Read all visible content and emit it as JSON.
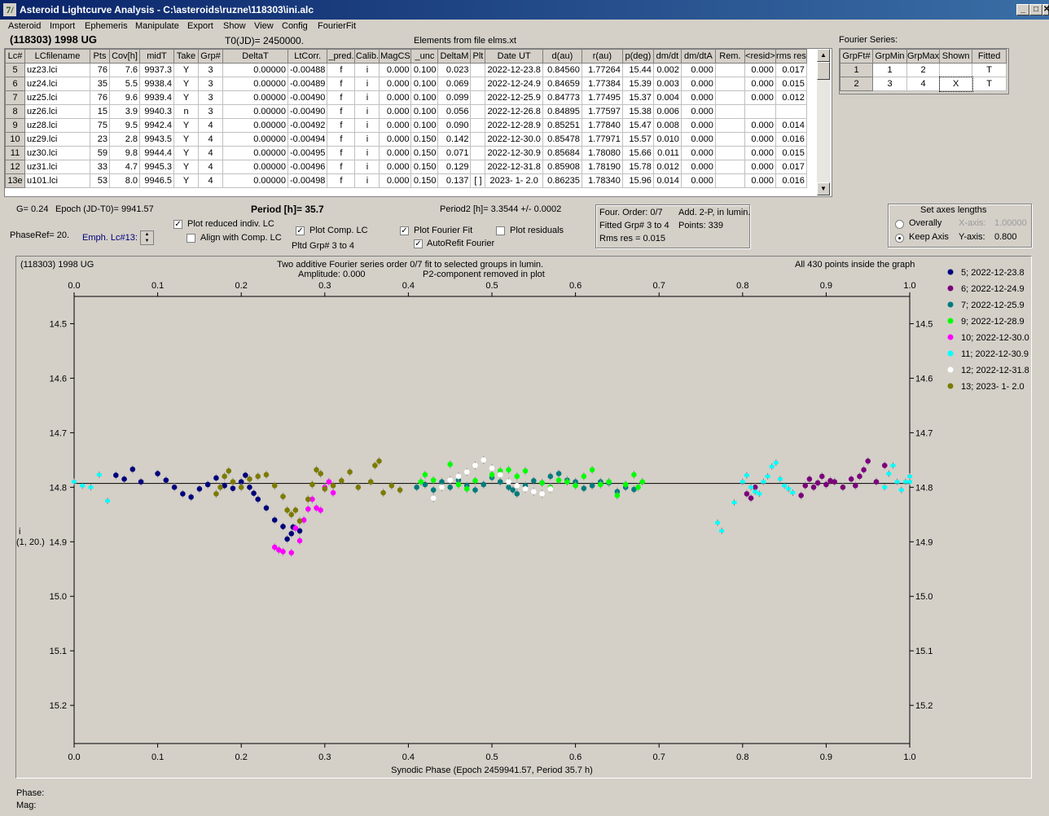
{
  "window": {
    "title": "Asteroid Lightcurve Analysis - C:\\asteroids\\ruzne\\118303\\ini.alc",
    "icon_glyph": "7/",
    "btn_min": "_",
    "btn_max": "□",
    "btn_close": "✕"
  },
  "menu": [
    "Asteroid",
    "Import",
    "Ephemeris",
    "Manipulate",
    "Export",
    "Show",
    "View",
    "Config",
    "FourierFit"
  ],
  "header": {
    "asteroid": "(118303) 1998 UG",
    "t0": "T0(JD)= 2450000.",
    "elements": "Elements from file elms.xt",
    "fourier_series": "Fourier Series:"
  },
  "lc_table": {
    "columns": [
      "Lc#",
      "LCfilename",
      "Pts",
      "Cov[h]",
      "midT",
      "Take",
      "Grp#",
      "DeltaT",
      "LtCorr.",
      "_pred.",
      "Calib.",
      "MagCS",
      "_unc",
      "DeltaM",
      "Plt",
      "Date UT",
      "d(au)",
      "r(au)",
      "p(deg)",
      "dm/dt",
      "dm/dtA",
      "Rem.",
      "<resid>",
      "rms res"
    ],
    "rows": [
      [
        "5",
        "uz23.lci",
        "76",
        "7.6",
        "9937.3",
        "Y",
        "3",
        "0.00000",
        "-0.00488",
        "f",
        "i",
        "0.000",
        "0.100",
        "0.023",
        "",
        "2022-12-23.8",
        "0.84560",
        "1.77264",
        "15.44",
        "0.002",
        "0.000",
        "",
        "0.000",
        "0.017"
      ],
      [
        "6",
        "uz24.lci",
        "35",
        "5.5",
        "9938.4",
        "Y",
        "3",
        "0.00000",
        "-0.00489",
        "f",
        "i",
        "0.000",
        "0.100",
        "0.069",
        "",
        "2022-12-24.9",
        "0.84659",
        "1.77384",
        "15.39",
        "0.003",
        "0.000",
        "",
        "0.000",
        "0.015"
      ],
      [
        "7",
        "uz25.lci",
        "76",
        "9.6",
        "9939.4",
        "Y",
        "3",
        "0.00000",
        "-0.00490",
        "f",
        "i",
        "0.000",
        "0.100",
        "0.099",
        "",
        "2022-12-25.9",
        "0.84773",
        "1.77495",
        "15.37",
        "0.004",
        "0.000",
        "",
        "0.000",
        "0.012"
      ],
      [
        "8",
        "uz26.lci",
        "15",
        "3.9",
        "9940.3",
        "n",
        "3",
        "0.00000",
        "-0.00490",
        "f",
        "i",
        "0.000",
        "0.100",
        "0.056",
        "",
        "2022-12-26.8",
        "0.84895",
        "1.77597",
        "15.38",
        "0.006",
        "0.000",
        "",
        "",
        ""
      ],
      [
        "9",
        "uz28.lci",
        "75",
        "9.5",
        "9942.4",
        "Y",
        "4",
        "0.00000",
        "-0.00492",
        "f",
        "i",
        "0.000",
        "0.100",
        "0.090",
        "",
        "2022-12-28.9",
        "0.85251",
        "1.77840",
        "15.47",
        "0.008",
        "0.000",
        "",
        "0.000",
        "0.014"
      ],
      [
        "10",
        "uz29.lci",
        "23",
        "2.8",
        "9943.5",
        "Y",
        "4",
        "0.00000",
        "-0.00494",
        "f",
        "i",
        "0.000",
        "0.150",
        "0.142",
        "",
        "2022-12-30.0",
        "0.85478",
        "1.77971",
        "15.57",
        "0.010",
        "0.000",
        "",
        "0.000",
        "0.016"
      ],
      [
        "11",
        "uz30.lci",
        "59",
        "9.8",
        "9944.4",
        "Y",
        "4",
        "0.00000",
        "-0.00495",
        "f",
        "i",
        "0.000",
        "0.150",
        "0.071",
        "",
        "2022-12-30.9",
        "0.85684",
        "1.78080",
        "15.66",
        "0.011",
        "0.000",
        "",
        "0.000",
        "0.015"
      ],
      [
        "12",
        "uz31.lci",
        "33",
        "4.7",
        "9945.3",
        "Y",
        "4",
        "0.00000",
        "-0.00496",
        "f",
        "i",
        "0.000",
        "0.150",
        "0.129",
        "",
        "2022-12-31.8",
        "0.85908",
        "1.78190",
        "15.78",
        "0.012",
        "0.000",
        "",
        "0.000",
        "0.017"
      ],
      [
        "13e",
        "u101.lci",
        "53",
        "8.0",
        "9946.5",
        "Y",
        "4",
        "0.00000",
        "-0.00498",
        "f",
        "i",
        "0.000",
        "0.150",
        "0.137",
        "[ ]",
        "2023- 1- 2.0",
        "0.86235",
        "1.78340",
        "15.96",
        "0.014",
        "0.000",
        "",
        "0.000",
        "0.016"
      ]
    ],
    "scroll_up": "▲",
    "scroll_down": "▼"
  },
  "fourier_table": {
    "columns": [
      "GrpFt#",
      "GrpMin",
      "GrpMax",
      "Shown",
      "Fitted"
    ],
    "rows": [
      [
        "1",
        "1",
        "2",
        "",
        "T"
      ],
      [
        "2",
        "3",
        "4",
        "X",
        "T"
      ]
    ]
  },
  "controls": {
    "g": "G= 0.24",
    "epoch": "Epoch (JD-T0)= 9941.57",
    "period": "Period [h]= 35.7",
    "period2": "Period2 [h]= 3.3544 +/- 0.0002",
    "phaseref": "PhaseRef= 20.",
    "emph": "Emph. Lc#13:",
    "plot_reduced": "Plot reduced indiv. LC",
    "align_comp": "Align with Comp. LC",
    "plot_comp": "Plot Comp. LC",
    "pltd_grp": "Pltd Grp#  3   to   4",
    "plot_fourier": "Plot Fourier Fit",
    "autorefit": "AutoRefit Fourier",
    "plot_residuals": "Plot residuals",
    "check_mark": "✓"
  },
  "fourier_info": {
    "order": "Four. Order:  0/7",
    "add": "Add. 2-P, in lumin.",
    "fitted": "Fitted Grp# 3 to 4",
    "points": "Points: 339",
    "rms": "Rms res     = 0.015"
  },
  "axes_box": {
    "title": "Set axes lengths",
    "overally": "Overally",
    "keep": "Keep Axis",
    "xaxis_label": "X-axis:",
    "xaxis_value": "1.00000",
    "yaxis_label": "Y-axis:",
    "yaxis_value": "0.800"
  },
  "plot_text": {
    "name": "(118303) 1998 UG",
    "desc1": "Two additive Fourier series order 0/7 fit to selected groups in lumin.",
    "desc2": "Amplitude: 0.000",
    "desc3": "P2-component removed in plot",
    "inside": "All 430 points inside the graph",
    "ylabel1": "i",
    "ylabel2": "(1, 20.)"
  },
  "chart_data": {
    "type": "scatter",
    "xlabel": "Synodic Phase (Epoch 2459941.57, Period 35.7 h)",
    "ylabel": "i (1, 20.)",
    "xlim": [
      0,
      1
    ],
    "ylim": [
      15.27,
      14.45
    ],
    "y_inverted": true,
    "xticks": [
      "0.0",
      "0.1",
      "0.2",
      "0.3",
      "0.4",
      "0.5",
      "0.6",
      "0.7",
      "0.8",
      "0.9",
      "1.0"
    ],
    "yticks": [
      "14.5",
      "14.6",
      "14.7",
      "14.8",
      "14.9",
      "15.0",
      "15.1",
      "15.2"
    ],
    "fit_line_y": 14.793,
    "series": [
      {
        "name": "5; 2022-12-23.8",
        "color": "#00007b",
        "marker": "dot",
        "points": [
          [
            0.05,
            14.778
          ],
          [
            0.06,
            14.785
          ],
          [
            0.07,
            14.767
          ],
          [
            0.08,
            14.79
          ],
          [
            0.1,
            14.775
          ],
          [
            0.11,
            14.787
          ],
          [
            0.12,
            14.8
          ],
          [
            0.13,
            14.812
          ],
          [
            0.14,
            14.818
          ],
          [
            0.15,
            14.803
          ],
          [
            0.16,
            14.795
          ],
          [
            0.17,
            14.783
          ],
          [
            0.18,
            14.797
          ],
          [
            0.19,
            14.802
          ],
          [
            0.2,
            14.79
          ],
          [
            0.205,
            14.778
          ],
          [
            0.21,
            14.8
          ],
          [
            0.215,
            14.811
          ],
          [
            0.22,
            14.822
          ],
          [
            0.23,
            14.838
          ],
          [
            0.24,
            14.86
          ],
          [
            0.25,
            14.872
          ],
          [
            0.26,
            14.885
          ],
          [
            0.27,
            14.88
          ],
          [
            0.255,
            14.895
          ],
          [
            0.262,
            14.873
          ]
        ]
      },
      {
        "name": "6; 2022-12-24.9",
        "color": "#7b007b",
        "marker": "dot",
        "points": [
          [
            0.805,
            14.812
          ],
          [
            0.81,
            14.82
          ],
          [
            0.815,
            14.8
          ],
          [
            0.87,
            14.815
          ],
          [
            0.875,
            14.797
          ],
          [
            0.88,
            14.785
          ],
          [
            0.885,
            14.8
          ],
          [
            0.89,
            14.792
          ],
          [
            0.895,
            14.78
          ],
          [
            0.9,
            14.795
          ],
          [
            0.905,
            14.788
          ],
          [
            0.91,
            14.79
          ],
          [
            0.92,
            14.8
          ],
          [
            0.93,
            14.785
          ],
          [
            0.935,
            14.797
          ],
          [
            0.94,
            14.78
          ],
          [
            0.945,
            14.768
          ],
          [
            0.95,
            14.752
          ],
          [
            0.96,
            14.79
          ],
          [
            0.97,
            14.76
          ]
        ]
      },
      {
        "name": "7; 2022-12-25.9",
        "color": "#007b7b",
        "marker": "dot",
        "points": [
          [
            0.41,
            14.8
          ],
          [
            0.42,
            14.795
          ],
          [
            0.43,
            14.805
          ],
          [
            0.44,
            14.79
          ],
          [
            0.45,
            14.8
          ],
          [
            0.46,
            14.787
          ],
          [
            0.47,
            14.797
          ],
          [
            0.48,
            14.805
          ],
          [
            0.49,
            14.795
          ],
          [
            0.5,
            14.782
          ],
          [
            0.51,
            14.79
          ],
          [
            0.52,
            14.8
          ],
          [
            0.525,
            14.805
          ],
          [
            0.53,
            14.812
          ],
          [
            0.54,
            14.797
          ],
          [
            0.55,
            14.788
          ],
          [
            0.56,
            14.792
          ],
          [
            0.57,
            14.78
          ],
          [
            0.58,
            14.775
          ],
          [
            0.59,
            14.787
          ],
          [
            0.6,
            14.79
          ],
          [
            0.61,
            14.802
          ],
          [
            0.62,
            14.797
          ],
          [
            0.63,
            14.79
          ],
          [
            0.64,
            14.792
          ],
          [
            0.65,
            14.808
          ],
          [
            0.66,
            14.8
          ],
          [
            0.67,
            14.804
          ]
        ]
      },
      {
        "name": "9; 2022-12-28.9",
        "color": "#00ff00",
        "marker": "dot",
        "points": [
          [
            0.415,
            14.79
          ],
          [
            0.42,
            14.777
          ],
          [
            0.43,
            14.787
          ],
          [
            0.44,
            14.8
          ],
          [
            0.45,
            14.758
          ],
          [
            0.46,
            14.795
          ],
          [
            0.47,
            14.803
          ],
          [
            0.48,
            14.788
          ],
          [
            0.5,
            14.777
          ],
          [
            0.51,
            14.77
          ],
          [
            0.52,
            14.768
          ],
          [
            0.53,
            14.78
          ],
          [
            0.54,
            14.77
          ],
          [
            0.56,
            14.792
          ],
          [
            0.57,
            14.8
          ],
          [
            0.58,
            14.787
          ],
          [
            0.59,
            14.79
          ],
          [
            0.6,
            14.797
          ],
          [
            0.61,
            14.78
          ],
          [
            0.62,
            14.768
          ],
          [
            0.63,
            14.795
          ],
          [
            0.64,
            14.79
          ],
          [
            0.65,
            14.815
          ],
          [
            0.66,
            14.795
          ],
          [
            0.67,
            14.777
          ],
          [
            0.675,
            14.8
          ],
          [
            0.68,
            14.79
          ]
        ]
      },
      {
        "name": "10; 2022-12-30.0",
        "color": "#ff00ff",
        "marker": "dot",
        "points": [
          [
            0.24,
            14.91
          ],
          [
            0.245,
            14.915
          ],
          [
            0.25,
            14.918
          ],
          [
            0.26,
            14.92
          ],
          [
            0.27,
            14.898
          ],
          [
            0.265,
            14.875
          ],
          [
            0.275,
            14.86
          ],
          [
            0.28,
            14.84
          ],
          [
            0.285,
            14.822
          ],
          [
            0.29,
            14.838
          ],
          [
            0.295,
            14.842
          ],
          [
            0.3,
            14.8
          ],
          [
            0.305,
            14.79
          ],
          [
            0.31,
            14.81
          ]
        ]
      },
      {
        "name": "11; 2022-12-30.9",
        "color": "#00ffff",
        "marker": "bar",
        "points": [
          [
            0.0,
            14.79
          ],
          [
            0.01,
            14.797
          ],
          [
            0.02,
            14.8
          ],
          [
            0.03,
            14.777
          ],
          [
            0.04,
            14.825
          ],
          [
            0.77,
            14.865
          ],
          [
            0.775,
            14.88
          ],
          [
            0.79,
            14.828
          ],
          [
            0.8,
            14.79
          ],
          [
            0.805,
            14.778
          ],
          [
            0.81,
            14.8
          ],
          [
            0.815,
            14.808
          ],
          [
            0.82,
            14.812
          ],
          [
            0.825,
            14.79
          ],
          [
            0.83,
            14.78
          ],
          [
            0.835,
            14.762
          ],
          [
            0.84,
            14.755
          ],
          [
            0.845,
            14.785
          ],
          [
            0.85,
            14.797
          ],
          [
            0.855,
            14.803
          ],
          [
            0.86,
            14.81
          ],
          [
            0.97,
            14.8
          ],
          [
            0.975,
            14.775
          ],
          [
            0.98,
            14.76
          ],
          [
            0.985,
            14.79
          ],
          [
            0.99,
            14.805
          ],
          [
            0.995,
            14.79
          ],
          [
            1.0,
            14.78
          ],
          [
            1.005,
            14.79
          ]
        ]
      },
      {
        "name": "12; 2022-12-31.8",
        "color": "#ffffff",
        "marker": "dot",
        "points": [
          [
            0.43,
            14.82
          ],
          [
            0.44,
            14.8
          ],
          [
            0.45,
            14.787
          ],
          [
            0.46,
            14.78
          ],
          [
            0.47,
            14.772
          ],
          [
            0.48,
            14.76
          ],
          [
            0.49,
            14.75
          ],
          [
            0.5,
            14.765
          ],
          [
            0.51,
            14.777
          ],
          [
            0.52,
            14.79
          ],
          [
            0.53,
            14.797
          ],
          [
            0.54,
            14.803
          ],
          [
            0.55,
            14.808
          ],
          [
            0.56,
            14.812
          ],
          [
            0.57,
            14.803
          ]
        ]
      },
      {
        "name": "13; 2023- 1- 2.0",
        "color": "#7b7b00",
        "marker": "dot",
        "points": [
          [
            0.17,
            14.812
          ],
          [
            0.175,
            14.8
          ],
          [
            0.18,
            14.78
          ],
          [
            0.185,
            14.77
          ],
          [
            0.19,
            14.79
          ],
          [
            0.2,
            14.8
          ],
          [
            0.21,
            14.785
          ],
          [
            0.22,
            14.78
          ],
          [
            0.23,
            14.777
          ],
          [
            0.24,
            14.797
          ],
          [
            0.25,
            14.817
          ],
          [
            0.255,
            14.842
          ],
          [
            0.26,
            14.85
          ],
          [
            0.265,
            14.842
          ],
          [
            0.27,
            14.862
          ],
          [
            0.28,
            14.822
          ],
          [
            0.285,
            14.795
          ],
          [
            0.29,
            14.768
          ],
          [
            0.295,
            14.775
          ],
          [
            0.3,
            14.803
          ],
          [
            0.31,
            14.797
          ],
          [
            0.32,
            14.788
          ],
          [
            0.33,
            14.772
          ],
          [
            0.34,
            14.8
          ],
          [
            0.355,
            14.79
          ],
          [
            0.36,
            14.76
          ],
          [
            0.365,
            14.752
          ],
          [
            0.37,
            14.81
          ],
          [
            0.38,
            14.797
          ],
          [
            0.39,
            14.805
          ]
        ]
      }
    ]
  },
  "status": {
    "phase": "Phase:",
    "mag": "Mag:"
  }
}
